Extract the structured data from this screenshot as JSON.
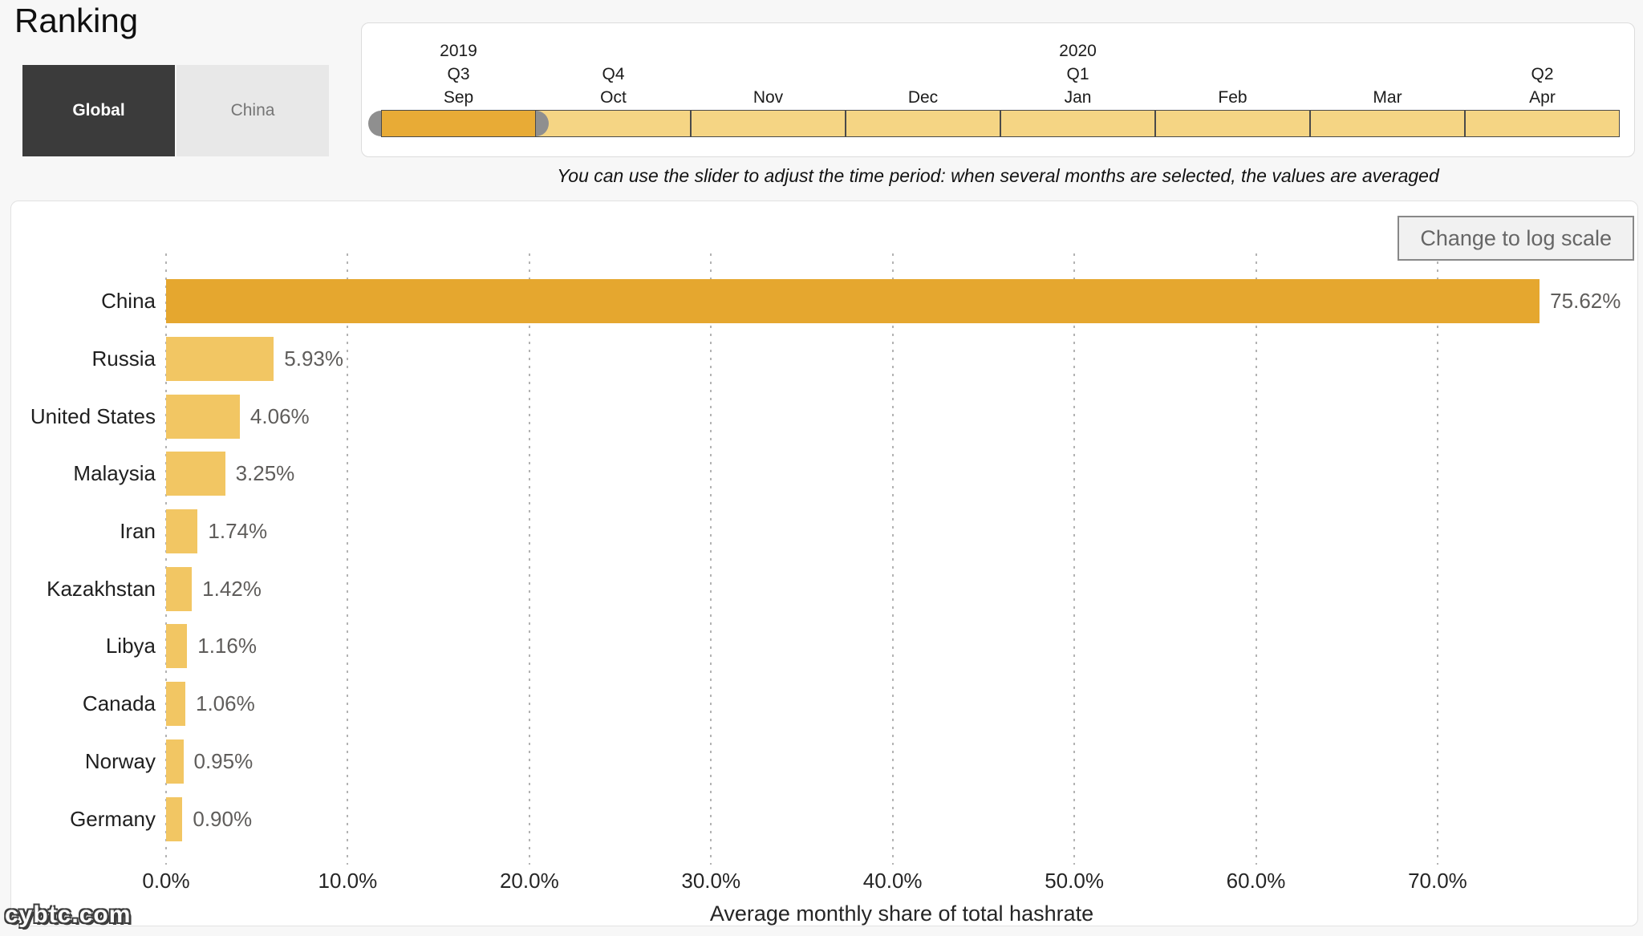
{
  "header": {
    "title": "Ranking",
    "scope_toggle": [
      {
        "label": "Global",
        "active": true
      },
      {
        "label": "China",
        "active": false
      }
    ],
    "toggle_colors": {
      "active_bg": "#3b3b3b",
      "active_text": "#ffffff",
      "inactive_bg": "#e8e8e8",
      "inactive_text": "#757575"
    }
  },
  "slider": {
    "hint": "You can use the slider to adjust the time period: when several months are selected, the values are averaged",
    "months": [
      {
        "year": "2019",
        "quarter": "Q3",
        "month": "Sep",
        "selected": true
      },
      {
        "year": "",
        "quarter": "Q4",
        "month": "Oct",
        "selected": false
      },
      {
        "year": "",
        "quarter": "",
        "month": "Nov",
        "selected": false
      },
      {
        "year": "",
        "quarter": "",
        "month": "Dec",
        "selected": false
      },
      {
        "year": "2020",
        "quarter": "Q1",
        "month": "Jan",
        "selected": false
      },
      {
        "year": "",
        "quarter": "",
        "month": "Feb",
        "selected": false
      },
      {
        "year": "",
        "quarter": "",
        "month": "Mar",
        "selected": false
      },
      {
        "year": "",
        "quarter": "Q2",
        "month": "Apr",
        "selected": false
      }
    ],
    "colors": {
      "selected": "#E8AB36",
      "unselected": "#F5D584",
      "border": "#4a4a4a",
      "handle": "#8f8f8f"
    }
  },
  "chart": {
    "log_button_label": "Change to log scale"
  },
  "chart_data": {
    "type": "bar",
    "orientation": "horizontal",
    "title": "Ranking",
    "categories": [
      "China",
      "Russia",
      "United States",
      "Malaysia",
      "Iran",
      "Kazakhstan",
      "Libya",
      "Canada",
      "Norway",
      "Germany"
    ],
    "values": [
      75.62,
      5.93,
      4.06,
      3.25,
      1.74,
      1.42,
      1.16,
      1.06,
      0.95,
      0.9
    ],
    "value_labels": [
      "75.62%",
      "5.93%",
      "4.06%",
      "3.25%",
      "1.74%",
      "1.42%",
      "1.16%",
      "1.06%",
      "0.95%",
      "0.90%"
    ],
    "xlabel": "Average monthly share of total hashrate",
    "ylabel": "",
    "x_ticks": [
      "0.0%",
      "10.0%",
      "20.0%",
      "30.0%",
      "40.0%",
      "50.0%",
      "60.0%",
      "70.0%"
    ],
    "x_tick_values": [
      0,
      10,
      20,
      30,
      40,
      50,
      60,
      70
    ],
    "xlim": [
      0,
      81
    ],
    "grid": "dashed-vertical",
    "legend": "none",
    "highlight_category": "China",
    "colors": {
      "bar": "#F2C663",
      "bar_highlight": "#E5A72F",
      "value_label": "#5f5d5b"
    }
  },
  "footer": {
    "watermark": "cybtc.com"
  }
}
